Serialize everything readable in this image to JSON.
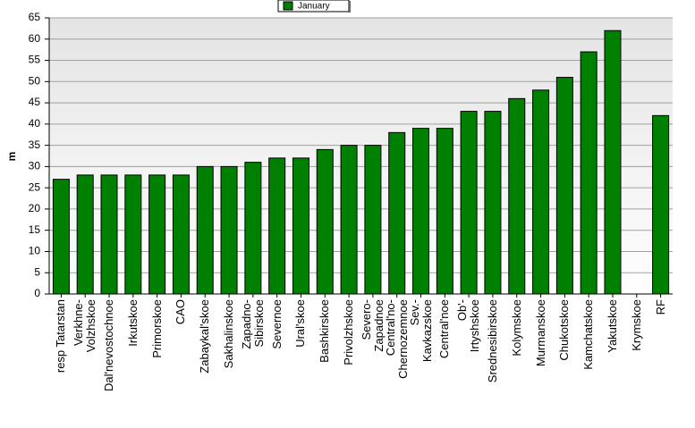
{
  "chart_data": {
    "type": "bar",
    "y_label": "m",
    "categories": [
      "resp Tatarstan",
      "Verkhne-\nVolzhskoe",
      "Dal'nevostochnoe",
      "Irkutskoe",
      "Primorskoe",
      "CAO",
      "Zabaykal'skoe",
      "Sakhalinskoe",
      "Zapadno-\nSibirskoe",
      "Severnoe",
      "Ural'skoe",
      "Bashkirskoe",
      "Privolzhskoe",
      "Severo-\nZapadnoe",
      "Central'no-\nChernozemnoe",
      "Sev.-\nKavkazskoe",
      "Central'noe",
      "Ob'-\nIrtyshskoe",
      "Srednesibirskoe",
      "Kolymskoe",
      "Murmanskoe",
      "Chukotskoe",
      "Kamchatskoe",
      "Yakutskoe",
      "Krymskoe",
      "RF"
    ],
    "series": [
      {
        "name": "January",
        "color": "#008000",
        "values": [
          27,
          28,
          28,
          28,
          28,
          28,
          30,
          30,
          31,
          32,
          32,
          34,
          35,
          35,
          38,
          39,
          39,
          43,
          43,
          46,
          48,
          51,
          57,
          62,
          null,
          42
        ]
      }
    ],
    "ylim": [
      0,
      65
    ],
    "yticks": [
      0,
      5,
      10,
      15,
      20,
      25,
      30,
      35,
      40,
      45,
      50,
      55,
      60,
      65
    ],
    "grid": true
  }
}
